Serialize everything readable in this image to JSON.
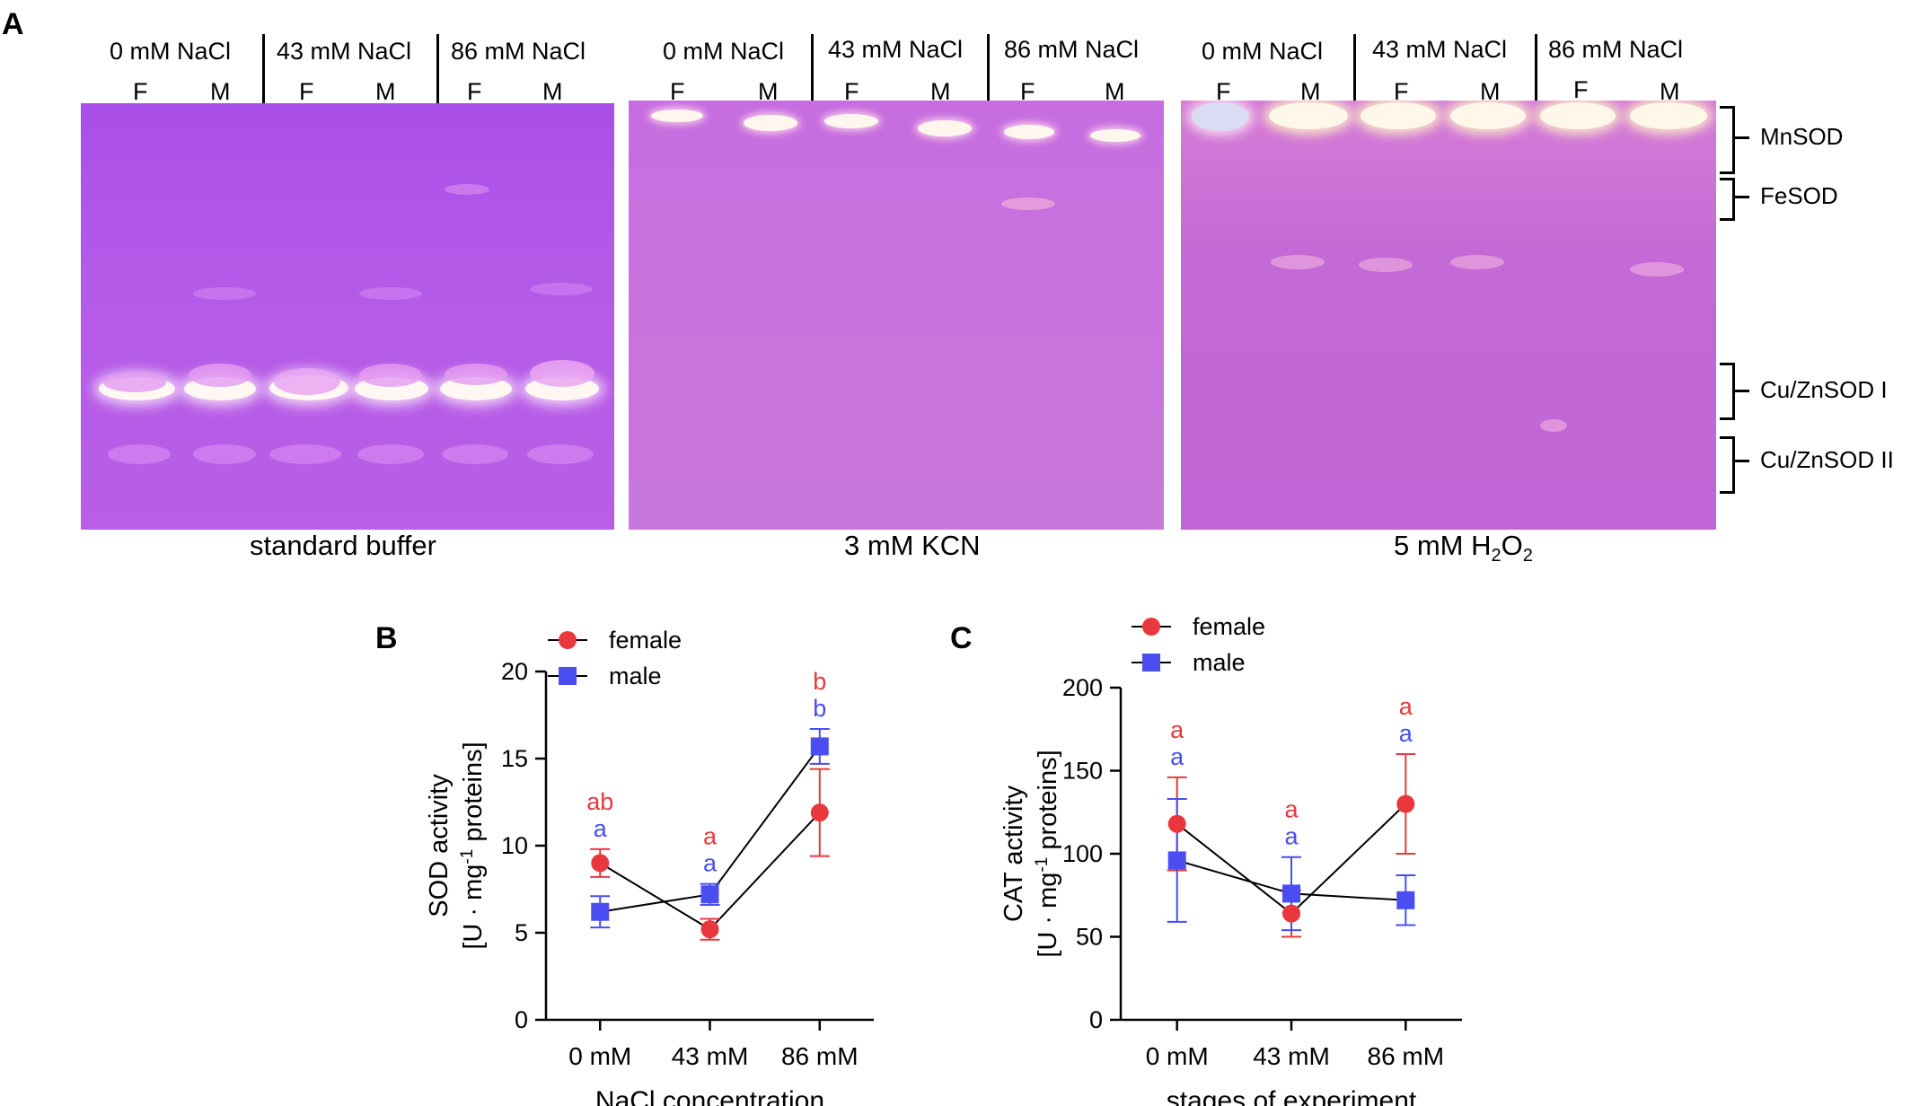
{
  "panel_a": {
    "letter": "A",
    "gels": [
      {
        "caption": "standard buffer",
        "groups": [
          "0 mM NaCl",
          "43 mM NaCl",
          "86 mM NaCl"
        ],
        "lanes": [
          "F",
          "M",
          "F",
          "M",
          "F",
          "M"
        ]
      },
      {
        "caption": "3 mM KCN",
        "groups": [
          "0 mM NaCl",
          "43 mM NaCl",
          "86 mM NaCl"
        ],
        "lanes": [
          "F",
          "M",
          "F",
          "M",
          "F",
          "M"
        ]
      },
      {
        "caption_main": "5 mM H",
        "caption_sub1": "2",
        "caption_mid": "O",
        "caption_sub2": "2",
        "groups": [
          "0 mM NaCl",
          "43 mM NaCl",
          "86 mM NaCl"
        ],
        "lanes": [
          "F",
          "M",
          "F",
          "M",
          "F",
          "M"
        ]
      }
    ],
    "bands": [
      "MnSOD",
      "FeSOD",
      "Cu/ZnSOD I",
      "Cu/ZnSOD II"
    ],
    "colors": {
      "gel_a": "#b85ae6",
      "gel_b": "#c672e0",
      "gel_c": "#c46ad6",
      "band": "#fff6ee"
    }
  },
  "chart_data": [
    {
      "letter": "B",
      "type": "line",
      "categories": [
        "0 mM",
        "43 mM",
        "86 mM"
      ],
      "xlabel": "NaCl concentration",
      "ylabel_main": "SOD activity",
      "ylabel_unit": "[U · mg",
      "ylabel_sup": "-1",
      "ylabel_end": " proteins]",
      "ylim": [
        0,
        20
      ],
      "yticks": [
        0,
        5,
        10,
        15,
        20
      ],
      "legend_position": "top-left",
      "series": [
        {
          "name": "female",
          "marker": "circle",
          "color": "#e8383d",
          "values": [
            9.0,
            5.2,
            11.9
          ],
          "err": [
            0.8,
            0.6,
            2.5
          ],
          "letters": [
            "ab",
            "a",
            "b"
          ]
        },
        {
          "name": "male",
          "marker": "square",
          "color": "#4a4ef0",
          "values": [
            6.2,
            7.2,
            15.7
          ],
          "err": [
            0.9,
            0.6,
            1.0
          ],
          "letters": [
            "a",
            "a",
            "b"
          ]
        }
      ]
    },
    {
      "letter": "C",
      "type": "line",
      "categories": [
        "0 mM",
        "43 mM",
        "86 mM"
      ],
      "xlabel": "stages of experiment",
      "ylabel_main": "CAT activity",
      "ylabel_unit": "[U · mg",
      "ylabel_sup": "-1",
      "ylabel_end": " proteins]",
      "ylim": [
        0,
        200
      ],
      "yticks": [
        0,
        50,
        100,
        150,
        200
      ],
      "legend_position": "top-left",
      "series": [
        {
          "name": "female",
          "marker": "circle",
          "color": "#e8383d",
          "values": [
            118,
            64,
            130
          ],
          "err": [
            28,
            14,
            30
          ],
          "letters": [
            "a",
            "a",
            "a"
          ]
        },
        {
          "name": "male",
          "marker": "square",
          "color": "#4a4ef0",
          "values": [
            96,
            76,
            72
          ],
          "err": [
            37,
            22,
            15
          ],
          "letters": [
            "a",
            "a",
            "a"
          ]
        }
      ]
    }
  ]
}
